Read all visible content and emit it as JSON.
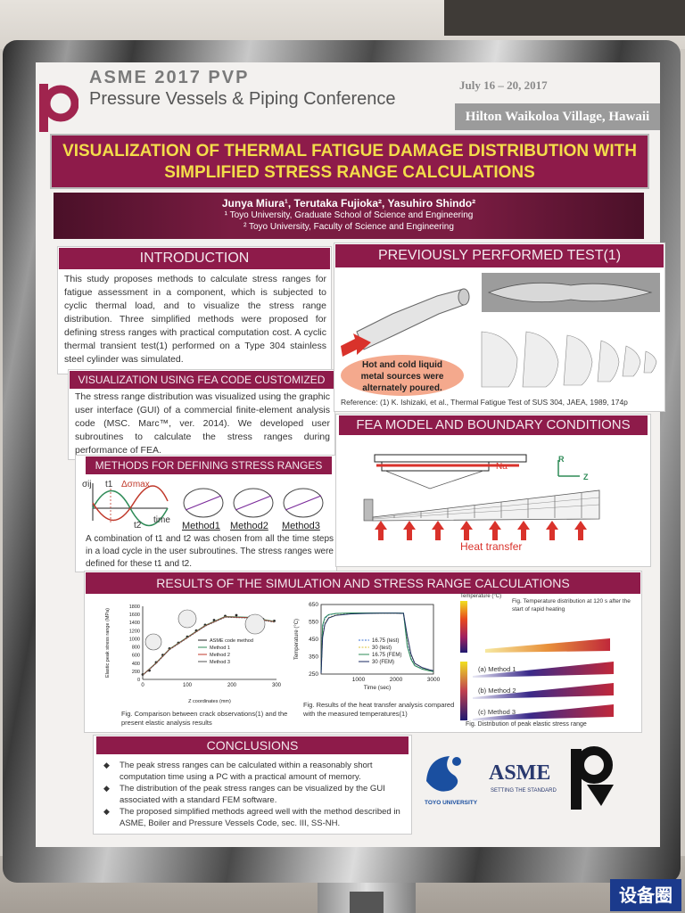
{
  "header": {
    "top_text": "ASME 2017 PVP",
    "conference": "Pressure Vessels & Piping Conference",
    "dates": "July 16 – 20, 2017",
    "venue": "Hilton Waikoloa Village, Hawaii"
  },
  "title": "VISUALIZATION OF THERMAL FATIGUE DAMAGE DISTRIBUTION WITH SIMPLIFIED STRESS RANGE CALCULATIONS",
  "authors": "Junya Miura¹, Terutaka Fujioka², Yasuhiro Shindo²",
  "affiliations": [
    "¹ Toyo University, Graduate School of Science and Engineering",
    "² Toyo University, Faculty of Science and Engineering"
  ],
  "introduction": {
    "heading": "INTRODUCTION",
    "text": "This study proposes methods to calculate stress ranges for fatigue assessment in a component, which is subjected to cyclic thermal load, and to visualize the stress range distribution. Three simplified methods were proposed for defining stress ranges with practical computation cost. A cyclic thermal transient test(1) performed on a Type 304 stainless steel cylinder was simulated."
  },
  "visualization": {
    "heading": "VISUALIZATION USING FEA CODE CUSTOMIZED",
    "text": "The stress range distribution was visualized using the graphic user interface (GUI) of a commercial finite-element analysis code (MSC. Marc™, ver. 2014). We developed user subroutines to calculate the stress ranges during performance of FEA."
  },
  "methods": {
    "heading": "METHODS FOR DEFINING STRESS RANGES",
    "labels": [
      "Method1",
      "Method2",
      "Method3"
    ],
    "graph_labels": {
      "sigma": "σij",
      "t1": "t1",
      "t2": "t2",
      "delta": "Δσmax",
      "time": "time"
    },
    "text": "A combination of t1 and t2 was chosen from all the time steps in a load cycle in the user subroutines. The stress ranges were defined for these t1 and t2."
  },
  "previous_test": {
    "heading": "PREVIOUSLY PERFORMED TEST(1)",
    "note": "Hot and cold liquid metal sources were alternately poured.",
    "reference": "Reference: (1) K. Ishizaki, et al., Thermal Fatigue Test of SUS 304, JAEA, 1989, 174p"
  },
  "fea_model": {
    "heading": "FEA MODEL AND BOUNDARY CONDITIONS",
    "na_label": "Na",
    "r_label": "R",
    "z_label": "Z",
    "heat_label": "Heat transfer"
  },
  "results": {
    "heading": "RESULTS OF THE SIMULATION AND STRESS RANGE CALCULATIONS",
    "fig1_caption": "Fig. Comparison between crack observations(1) and the present elastic analysis results",
    "fig2_caption": "Fig. Results of the heat transfer analysis compared with the measured temperatures(1)",
    "fig3_caption_top": "Fig. Temperature distribution at 120 s after the start of rapid heating",
    "fig3_caption_bottom": "Fig. Distribution of peak elastic stress range",
    "contour_labels": [
      "(a) Method 1",
      "(b) Method 2",
      "(c) Method 3"
    ],
    "temp_legend_title": "Temperature (°C)"
  },
  "chart_data": [
    {
      "type": "scatter",
      "title": "",
      "xlabel": "Z coordinates (mm)",
      "ylabel": "Elastic peak stress range (MPa)",
      "xlim": [
        0,
        300
      ],
      "ylim": [
        0,
        1800
      ],
      "x_ticks": [
        0,
        100,
        200,
        300
      ],
      "y_ticks": [
        0,
        200,
        400,
        600,
        800,
        1000,
        1200,
        1400,
        1600,
        1800
      ],
      "legend_position": "center-right",
      "series": [
        {
          "name": "ASME code method",
          "x": [
            0,
            15,
            30,
            45,
            60,
            80,
            100,
            120,
            140,
            160,
            185,
            210,
            240,
            270,
            295
          ],
          "y": [
            120,
            220,
            420,
            600,
            760,
            900,
            1050,
            1200,
            1340,
            1460,
            1560,
            1580,
            1540,
            1480,
            1440
          ]
        },
        {
          "name": "Method 1",
          "x": [
            0,
            30,
            60,
            100,
            140,
            185,
            240,
            295
          ],
          "y": [
            110,
            410,
            750,
            1040,
            1330,
            1550,
            1530,
            1430
          ]
        },
        {
          "name": "Method 2",
          "x": [
            0,
            30,
            60,
            100,
            140,
            185,
            240,
            295
          ],
          "y": [
            105,
            400,
            740,
            1030,
            1320,
            1540,
            1520,
            1420
          ]
        },
        {
          "name": "Method 3",
          "x": [
            0,
            30,
            60,
            100,
            140,
            185,
            240,
            295
          ],
          "y": [
            100,
            390,
            730,
            1020,
            1310,
            1530,
            1510,
            1410
          ]
        }
      ]
    },
    {
      "type": "line",
      "title": "",
      "xlabel": "Time (sec)",
      "ylabel": "Temperature (°C)",
      "xlim": [
        0,
        3000
      ],
      "ylim": [
        250,
        650
      ],
      "x_ticks": [
        1000,
        2000,
        3000
      ],
      "y_ticks": [
        250,
        350,
        450,
        550,
        650
      ],
      "legend_position": "bottom-center",
      "series": [
        {
          "name": "16.75 (test)",
          "x": [
            0,
            40,
            100,
            200,
            400,
            800,
            1200,
            1600,
            2000,
            2200,
            2300,
            2400,
            2500,
            2700,
            2900,
            3000
          ],
          "y": [
            255,
            520,
            570,
            590,
            598,
            600,
            601,
            601,
            601,
            600,
            420,
            340,
            300,
            280,
            270,
            266
          ]
        },
        {
          "name": "30 (test)",
          "x": [
            0,
            40,
            100,
            200,
            400,
            800,
            1200,
            1600,
            2000,
            2200,
            2300,
            2400,
            2500,
            2700,
            2900,
            3000
          ],
          "y": [
            255,
            470,
            540,
            575,
            590,
            597,
            600,
            600,
            600,
            599,
            460,
            360,
            310,
            285,
            272,
            268
          ]
        },
        {
          "name": "16.75 (FEM)",
          "x": [
            0,
            40,
            100,
            200,
            400,
            800,
            1200,
            1600,
            2000,
            2200,
            2300,
            2400,
            2500,
            2700,
            2900,
            3000
          ],
          "y": [
            255,
            530,
            575,
            592,
            599,
            601,
            601,
            601,
            601,
            600,
            410,
            335,
            298,
            278,
            268,
            264
          ]
        },
        {
          "name": "30 (FEM)",
          "x": [
            0,
            40,
            100,
            200,
            400,
            800,
            1200,
            1600,
            2000,
            2200,
            2300,
            2400,
            2500,
            2700,
            2900,
            3000
          ],
          "y": [
            255,
            460,
            535,
            572,
            588,
            596,
            599,
            600,
            600,
            599,
            470,
            365,
            312,
            287,
            274,
            269
          ]
        }
      ]
    }
  ],
  "conclusions": {
    "heading": "CONCLUSIONS",
    "items": [
      "The peak stress ranges can be calculated within a reasonably short computation time using a PC with a practical amount of memory.",
      "The distribution of the peak stress ranges can be visualized by the GUI associated with a standard FEM software.",
      "The proposed simplified methods agreed well with the method described in ASME, Boiler and Pressure Vessels Code, sec. III, SS-NH."
    ]
  },
  "logos": {
    "toyo": "TOYO UNIVERSITY",
    "asme": "ASME",
    "asme_tag": "SETTING THE STANDARD",
    "pvp": "PVP"
  },
  "watermark": "设备圈",
  "colors": {
    "maroon": "#8e1b4a",
    "title_yellow": "#f3dd4a",
    "heat_arrow": "#d9322b",
    "note_pink": "#f4a98d"
  }
}
